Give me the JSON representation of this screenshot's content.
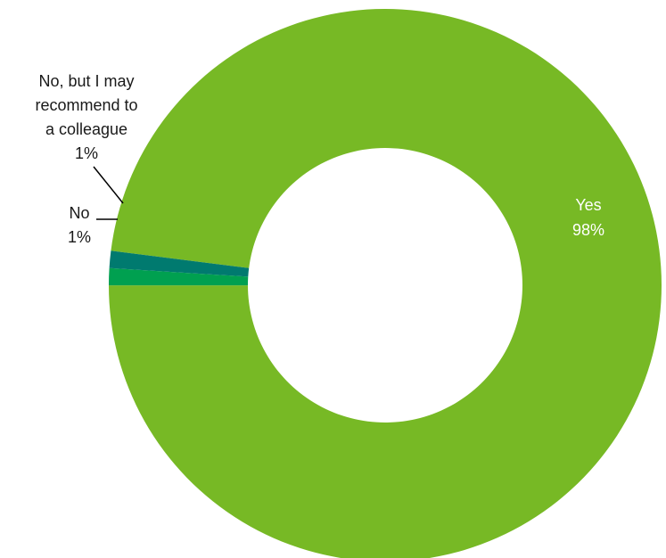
{
  "chart_data": {
    "type": "pie",
    "variant": "donut",
    "title": "",
    "slices": [
      {
        "label": "Yes",
        "value": 98,
        "value_label": "98%",
        "color": "#77b925"
      },
      {
        "label": "No",
        "value": 1,
        "value_label": "1%",
        "color": "#00a050"
      },
      {
        "label_lines": [
          "No, but I may",
          "recommend to",
          "a colleague"
        ],
        "value": 1,
        "value_label": "1%",
        "color": "#007a6f"
      }
    ],
    "legend": "none"
  }
}
